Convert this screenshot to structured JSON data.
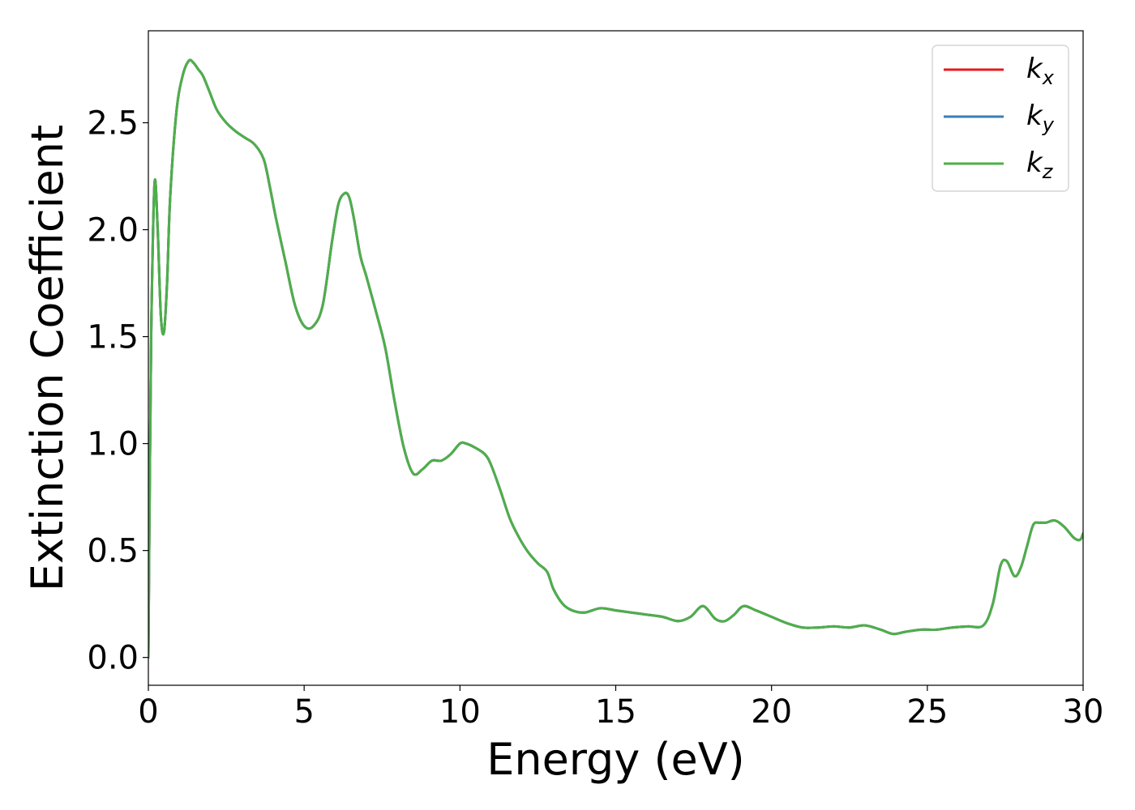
{
  "chart_data": {
    "type": "line",
    "title": "",
    "xlabel": "Energy (eV)",
    "ylabel": "Extinction Coefficient",
    "xlim": [
      0,
      30
    ],
    "ylim": [
      -0.13,
      2.93
    ],
    "xticks": [
      0,
      5,
      10,
      15,
      20,
      25,
      30
    ],
    "xtick_labels": [
      "0",
      "5",
      "10",
      "15",
      "20",
      "25",
      "30"
    ],
    "yticks": [
      0.0,
      0.5,
      1.0,
      1.5,
      2.0,
      2.5
    ],
    "ytick_labels": [
      "0.0",
      "0.5",
      "1.0",
      "1.5",
      "2.0",
      "2.5"
    ],
    "grid": false,
    "legend_position": "top-right",
    "series": [
      {
        "name": "k_x",
        "label_base": "k",
        "label_sub": "x",
        "color": "#e41a1c",
        "x": [
          0,
          0.05,
          0.1,
          0.2,
          0.3,
          0.4,
          0.5,
          0.6,
          0.7,
          0.9,
          1.1,
          1.3,
          1.45,
          1.6,
          1.75,
          1.95,
          2.2,
          2.5,
          2.8,
          3.1,
          3.4,
          3.7,
          3.9,
          4.1,
          4.4,
          4.7,
          5.0,
          5.3,
          5.6,
          5.9,
          6.1,
          6.3,
          6.45,
          6.6,
          6.8,
          7.0,
          7.3,
          7.6,
          7.9,
          8.2,
          8.5,
          8.8,
          9.1,
          9.4,
          9.7,
          10.0,
          10.2,
          10.5,
          10.8,
          11.0,
          11.3,
          11.6,
          11.9,
          12.2,
          12.5,
          12.8,
          13.0,
          13.3,
          13.6,
          14.0,
          14.5,
          15.0,
          15.5,
          16.0,
          16.5,
          17.0,
          17.4,
          17.8,
          18.2,
          18.5,
          18.8,
          19.1,
          19.5,
          20.0,
          20.5,
          21.0,
          21.5,
          22.0,
          22.5,
          23.0,
          23.5,
          23.9,
          24.3,
          24.8,
          25.3,
          25.8,
          26.3,
          26.8,
          27.1,
          27.35,
          27.55,
          27.8,
          28.0,
          28.2,
          28.4,
          28.6,
          28.8,
          29.1,
          29.4,
          29.7,
          29.9,
          30.0
        ],
        "y": [
          0.0,
          0.9,
          1.6,
          2.22,
          2.0,
          1.6,
          1.52,
          1.75,
          2.15,
          2.55,
          2.72,
          2.79,
          2.78,
          2.75,
          2.72,
          2.65,
          2.56,
          2.5,
          2.46,
          2.43,
          2.4,
          2.33,
          2.2,
          2.05,
          1.85,
          1.65,
          1.55,
          1.55,
          1.65,
          1.95,
          2.12,
          2.17,
          2.15,
          2.05,
          1.88,
          1.78,
          1.62,
          1.45,
          1.2,
          0.98,
          0.86,
          0.88,
          0.92,
          0.92,
          0.95,
          1.0,
          1.0,
          0.98,
          0.95,
          0.9,
          0.78,
          0.65,
          0.56,
          0.49,
          0.44,
          0.4,
          0.32,
          0.25,
          0.22,
          0.21,
          0.23,
          0.22,
          0.21,
          0.2,
          0.19,
          0.17,
          0.19,
          0.24,
          0.18,
          0.17,
          0.2,
          0.24,
          0.22,
          0.19,
          0.16,
          0.14,
          0.14,
          0.145,
          0.14,
          0.15,
          0.13,
          0.11,
          0.12,
          0.13,
          0.13,
          0.14,
          0.145,
          0.15,
          0.25,
          0.43,
          0.45,
          0.38,
          0.42,
          0.52,
          0.62,
          0.63,
          0.63,
          0.64,
          0.61,
          0.56,
          0.55,
          0.58
        ]
      },
      {
        "name": "k_y",
        "label_base": "k",
        "label_sub": "y",
        "color": "#377eb8",
        "x": [
          0,
          0.05,
          0.1,
          0.2,
          0.3,
          0.4,
          0.5,
          0.6,
          0.7,
          0.9,
          1.1,
          1.3,
          1.45,
          1.6,
          1.75,
          1.95,
          2.2,
          2.5,
          2.8,
          3.1,
          3.4,
          3.7,
          3.9,
          4.1,
          4.4,
          4.7,
          5.0,
          5.3,
          5.6,
          5.9,
          6.1,
          6.3,
          6.45,
          6.6,
          6.8,
          7.0,
          7.3,
          7.6,
          7.9,
          8.2,
          8.5,
          8.8,
          9.1,
          9.4,
          9.7,
          10.0,
          10.2,
          10.5,
          10.8,
          11.0,
          11.3,
          11.6,
          11.9,
          12.2,
          12.5,
          12.8,
          13.0,
          13.3,
          13.6,
          14.0,
          14.5,
          15.0,
          15.5,
          16.0,
          16.5,
          17.0,
          17.4,
          17.8,
          18.2,
          18.5,
          18.8,
          19.1,
          19.5,
          20.0,
          20.5,
          21.0,
          21.5,
          22.0,
          22.5,
          23.0,
          23.5,
          23.9,
          24.3,
          24.8,
          25.3,
          25.8,
          26.3,
          26.8,
          27.1,
          27.35,
          27.55,
          27.8,
          28.0,
          28.2,
          28.4,
          28.6,
          28.8,
          29.1,
          29.4,
          29.7,
          29.9,
          30.0
        ],
        "y": [
          0.0,
          0.9,
          1.6,
          2.22,
          2.0,
          1.6,
          1.52,
          1.75,
          2.15,
          2.55,
          2.72,
          2.79,
          2.78,
          2.75,
          2.72,
          2.65,
          2.56,
          2.5,
          2.46,
          2.43,
          2.4,
          2.33,
          2.2,
          2.05,
          1.85,
          1.65,
          1.55,
          1.55,
          1.65,
          1.95,
          2.12,
          2.17,
          2.15,
          2.05,
          1.88,
          1.78,
          1.62,
          1.45,
          1.2,
          0.98,
          0.86,
          0.88,
          0.92,
          0.92,
          0.95,
          1.0,
          1.0,
          0.98,
          0.95,
          0.9,
          0.78,
          0.65,
          0.56,
          0.49,
          0.44,
          0.4,
          0.32,
          0.25,
          0.22,
          0.21,
          0.23,
          0.22,
          0.21,
          0.2,
          0.19,
          0.17,
          0.19,
          0.24,
          0.18,
          0.17,
          0.2,
          0.24,
          0.22,
          0.19,
          0.16,
          0.14,
          0.14,
          0.145,
          0.14,
          0.15,
          0.13,
          0.11,
          0.12,
          0.13,
          0.13,
          0.14,
          0.145,
          0.15,
          0.25,
          0.43,
          0.45,
          0.38,
          0.42,
          0.52,
          0.62,
          0.63,
          0.63,
          0.64,
          0.61,
          0.56,
          0.55,
          0.58
        ]
      },
      {
        "name": "k_z",
        "label_base": "k",
        "label_sub": "z",
        "color": "#4daf4a",
        "x": [
          0,
          0.05,
          0.1,
          0.2,
          0.3,
          0.4,
          0.5,
          0.6,
          0.7,
          0.9,
          1.1,
          1.3,
          1.45,
          1.6,
          1.75,
          1.95,
          2.2,
          2.5,
          2.8,
          3.1,
          3.4,
          3.7,
          3.9,
          4.1,
          4.4,
          4.7,
          5.0,
          5.3,
          5.6,
          5.9,
          6.1,
          6.3,
          6.45,
          6.6,
          6.8,
          7.0,
          7.3,
          7.6,
          7.9,
          8.2,
          8.5,
          8.8,
          9.1,
          9.4,
          9.7,
          10.0,
          10.2,
          10.5,
          10.8,
          11.0,
          11.3,
          11.6,
          11.9,
          12.2,
          12.5,
          12.8,
          13.0,
          13.3,
          13.6,
          14.0,
          14.5,
          15.0,
          15.5,
          16.0,
          16.5,
          17.0,
          17.4,
          17.8,
          18.2,
          18.5,
          18.8,
          19.1,
          19.5,
          20.0,
          20.5,
          21.0,
          21.5,
          22.0,
          22.5,
          23.0,
          23.5,
          23.9,
          24.3,
          24.8,
          25.3,
          25.8,
          26.3,
          26.8,
          27.1,
          27.35,
          27.55,
          27.8,
          28.0,
          28.2,
          28.4,
          28.6,
          28.8,
          29.1,
          29.4,
          29.7,
          29.9,
          30.0
        ],
        "y": [
          0.0,
          0.9,
          1.6,
          2.22,
          2.0,
          1.6,
          1.52,
          1.75,
          2.15,
          2.55,
          2.72,
          2.79,
          2.78,
          2.75,
          2.72,
          2.65,
          2.56,
          2.5,
          2.46,
          2.43,
          2.4,
          2.33,
          2.2,
          2.05,
          1.85,
          1.65,
          1.55,
          1.55,
          1.65,
          1.95,
          2.12,
          2.17,
          2.15,
          2.05,
          1.88,
          1.78,
          1.62,
          1.45,
          1.2,
          0.98,
          0.86,
          0.88,
          0.92,
          0.92,
          0.95,
          1.0,
          1.0,
          0.98,
          0.95,
          0.9,
          0.78,
          0.65,
          0.56,
          0.49,
          0.44,
          0.4,
          0.32,
          0.25,
          0.22,
          0.21,
          0.23,
          0.22,
          0.21,
          0.2,
          0.19,
          0.17,
          0.19,
          0.24,
          0.18,
          0.17,
          0.2,
          0.24,
          0.22,
          0.19,
          0.16,
          0.14,
          0.14,
          0.145,
          0.14,
          0.15,
          0.13,
          0.11,
          0.12,
          0.13,
          0.13,
          0.14,
          0.145,
          0.15,
          0.25,
          0.43,
          0.45,
          0.38,
          0.42,
          0.52,
          0.62,
          0.63,
          0.63,
          0.64,
          0.61,
          0.56,
          0.55,
          0.58
        ]
      }
    ]
  }
}
